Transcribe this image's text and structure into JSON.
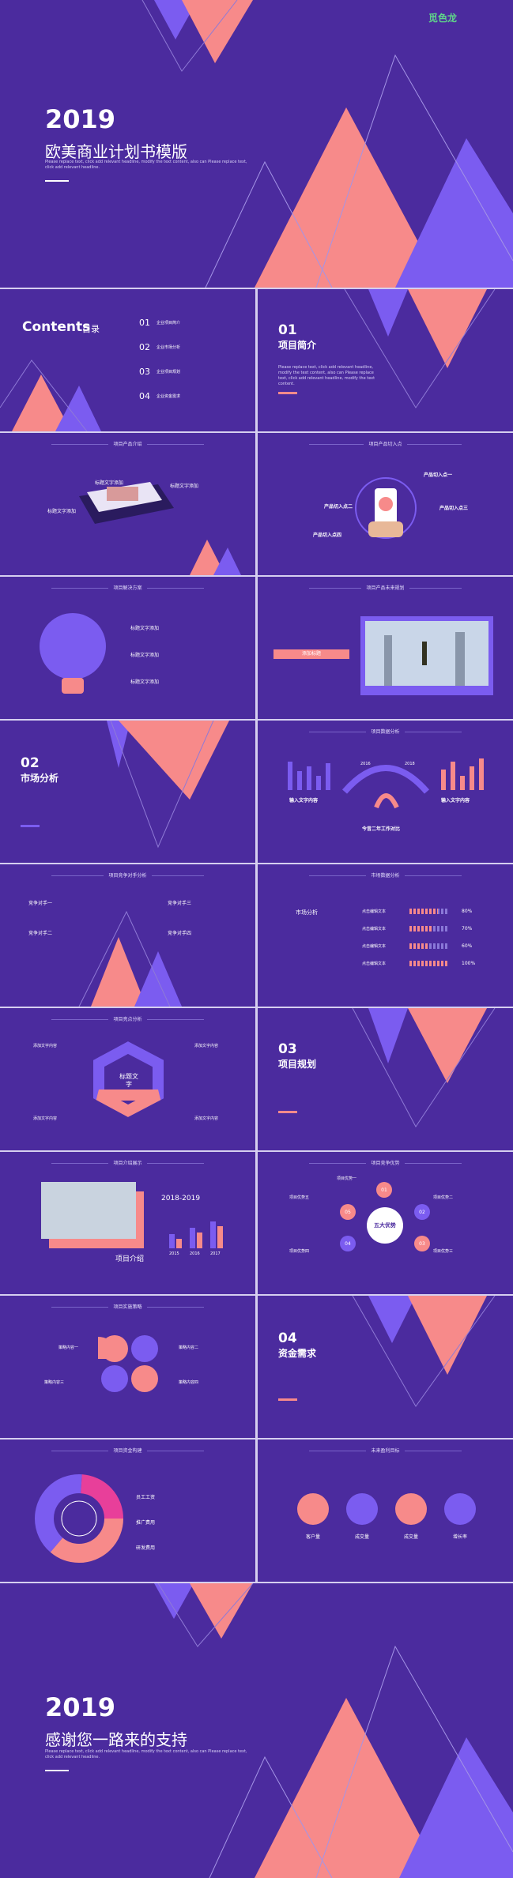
{
  "cover": {
    "logo": "觅色龙",
    "year": "2019",
    "title": "欧美商业计划书模版",
    "subtitle": "Please replace text, click add relevant headline, modify the text content, also can  Please replace text, click add relevant headline."
  },
  "contents": {
    "title": "Contents",
    "subtitle": "目录",
    "items": [
      {
        "num": "01",
        "label": "企业项目简介"
      },
      {
        "num": "02",
        "label": "企业市场分析"
      },
      {
        "num": "03",
        "label": "企业项目规划"
      },
      {
        "num": "04",
        "label": "企业资金需求"
      }
    ]
  },
  "section1": {
    "num": "01",
    "title": "项目简介",
    "body": "Please replace text, click add relevant headline, modify the text content, also can Please replace text, click add relevant headline, modify the text content."
  },
  "intro": {
    "header": "项目产品介绍",
    "labels": [
      "标题文字添加",
      "标题文字添加",
      "标题文字添加"
    ]
  },
  "entry": {
    "header": "项目产品切入点",
    "points": [
      "产品切入点一",
      "产品切入点二",
      "产品切入点三",
      "产品切入点四"
    ]
  },
  "solution": {
    "header": "项目解决方案",
    "items": [
      "标题文字添加",
      "标题文字添加",
      "标题文字添加"
    ]
  },
  "plan": {
    "header": "项目产品未来规划",
    "button": "添加标题"
  },
  "section2": {
    "num": "02",
    "title": "市场分析"
  },
  "data": {
    "header": "项目数据分析",
    "years": [
      "2016",
      "2018"
    ],
    "left": "输入文字内容",
    "right": "输入文字内容",
    "center": "今昔二年工作对比"
  },
  "competitors": {
    "header": "项目竞争对手分析",
    "items": [
      "竞争对手一",
      "竞争对手二",
      "竞争对手三",
      "竞争对手四"
    ]
  },
  "market": {
    "header": "市场数据分析",
    "title": "市场分析",
    "rows": [
      {
        "label": "点击编辑文本",
        "value": "80%"
      },
      {
        "label": "点击编辑文本",
        "value": "70%"
      },
      {
        "label": "点击编辑文本",
        "value": "60%"
      },
      {
        "label": "点击编辑文本",
        "value": "100%"
      }
    ]
  },
  "cycle": {
    "header": "项目亮点分析",
    "center": "标题文字",
    "labels": [
      "添加文字内容",
      "添加文字内容",
      "添加文字内容",
      "添加文字内容"
    ]
  },
  "section3": {
    "num": "03",
    "title": "项目规划"
  },
  "company": {
    "header": "项目介绍展示",
    "year": "2018-2019",
    "label": "项目介绍",
    "years": [
      "2015",
      "2016",
      "2017"
    ]
  },
  "edge": {
    "header": "项目竞争优势",
    "center": "五大优势",
    "nums": [
      "01",
      "02",
      "03",
      "04",
      "05"
    ],
    "items": [
      "项目优势一",
      "项目优势二",
      "项目优势三",
      "项目优势四",
      "项目优势五"
    ]
  },
  "strategy": {
    "header": "项目实施策略",
    "items": [
      "策略内容一",
      "策略内容二",
      "策略内容三",
      "策略内容四"
    ]
  },
  "section4": {
    "num": "04",
    "title": "资金需求"
  },
  "funds": {
    "header": "项目资金构建",
    "items": [
      "员工工资",
      "推广费用",
      "研发费用"
    ]
  },
  "profit": {
    "header": "未来盈利目标",
    "items": [
      "客户量",
      "成交量",
      "成交量",
      "增长率"
    ]
  },
  "end": {
    "year": "2019",
    "title": "感谢您一路来的支持",
    "subtitle": "Please replace text, click add relevant headline, modify the text content, also can  Please replace text, click add relevant headline."
  }
}
